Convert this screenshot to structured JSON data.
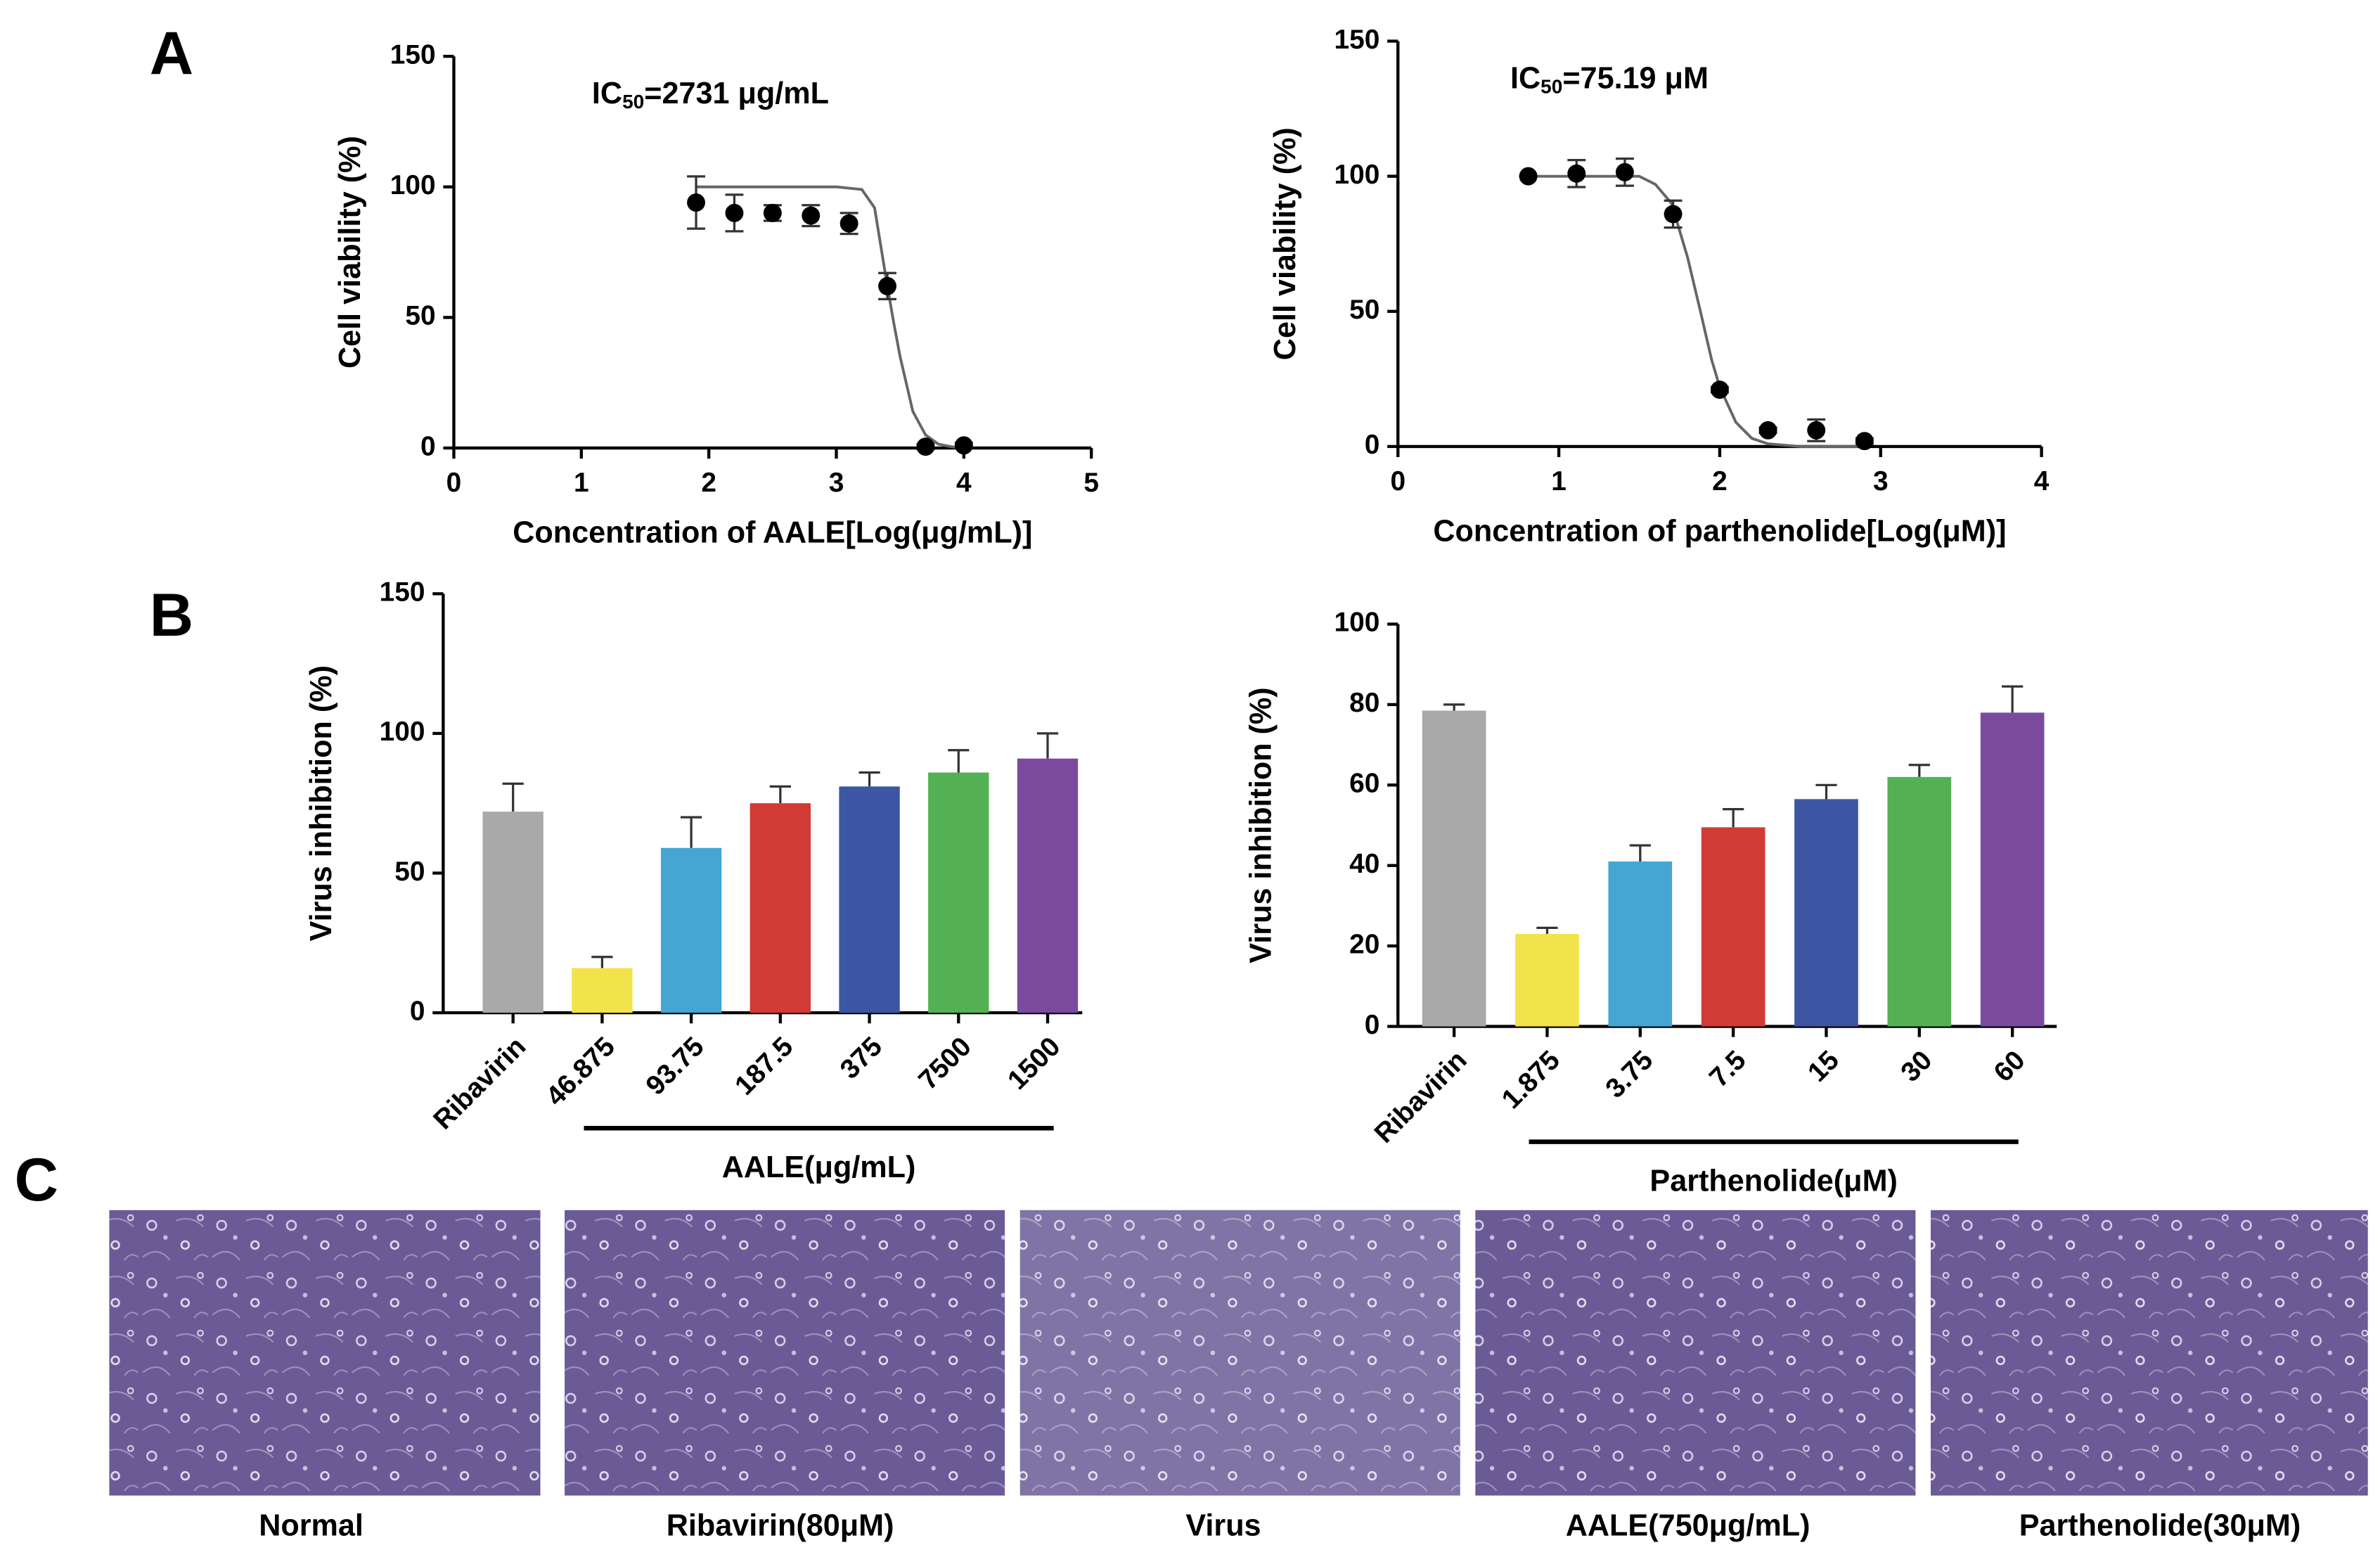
{
  "panel_labels": [
    "A",
    "B",
    "C"
  ],
  "chart_data": [
    {
      "type": "scatter",
      "xlabel": "Concentration of AALE[Log(μg/mL)]",
      "ylabel": "Cell viability (%)",
      "annotation": {
        "main": "IC",
        "sub": "50",
        "rest": "=2731 μg/mL"
      },
      "x": [
        1.9,
        2.2,
        2.5,
        2.8,
        3.1,
        3.4,
        3.7,
        4.0
      ],
      "values": [
        94,
        90,
        90,
        89,
        86,
        62,
        0.5,
        1
      ],
      "errors": [
        10,
        7,
        3,
        4,
        4,
        5,
        1,
        1
      ],
      "curve": {
        "x": [
          1.9,
          2.5,
          3.0,
          3.2,
          3.3,
          3.4,
          3.45,
          3.5,
          3.6,
          3.7,
          3.8,
          3.9,
          4.0
        ],
        "y": [
          100,
          100,
          100,
          99,
          92,
          62,
          48,
          35,
          14,
          5,
          1.5,
          0.5,
          0
        ]
      },
      "color": "#000000",
      "xlim": [
        0,
        5
      ],
      "xticks": [
        0,
        1,
        2,
        3,
        4,
        5
      ],
      "ylim": [
        0,
        150
      ],
      "yticks": [
        0,
        50,
        100,
        150
      ]
    },
    {
      "type": "scatter",
      "xlabel": "Concentration of parthenolide[Log(μM)]",
      "ylabel": "Cell viability (%)",
      "annotation": {
        "main": "IC",
        "sub": "50",
        "rest": "=75.19 μM"
      },
      "x": [
        0.81,
        1.11,
        1.41,
        1.71,
        2.0,
        2.3,
        2.6,
        2.9
      ],
      "values": [
        100,
        101,
        101.5,
        86,
        21,
        6,
        6,
        2
      ],
      "errors": [
        0,
        5,
        5,
        5,
        1,
        1,
        4,
        1
      ],
      "curve": {
        "x": [
          0.81,
          1.2,
          1.5,
          1.6,
          1.7,
          1.8,
          1.88,
          1.95,
          2.0,
          2.1,
          2.2,
          2.3,
          2.5,
          2.9
        ],
        "y": [
          100,
          100,
          100,
          97,
          90,
          70,
          50,
          32,
          22,
          9,
          3,
          1,
          0,
          0
        ]
      },
      "color": "#000000",
      "xlim": [
        0,
        4
      ],
      "xticks": [
        0,
        1,
        2,
        3,
        4
      ],
      "ylim": [
        0,
        150
      ],
      "yticks": [
        0,
        50,
        100,
        150
      ]
    },
    {
      "type": "bar",
      "ylabel": "Virus inhibition (%)",
      "group_label": "AALE(μg/mL)",
      "categories": [
        "Ribavirin",
        "46.875",
        "93.75",
        "187.5",
        "375",
        "7500",
        "1500"
      ],
      "values": [
        72,
        16,
        59,
        75,
        81,
        86,
        91
      ],
      "errors": [
        10,
        4,
        11,
        6,
        5,
        8,
        9
      ],
      "colors": [
        "#a9a9a9",
        "#f2e34c",
        "#45a5d3",
        "#d13a35",
        "#3c56a3",
        "#53b153",
        "#7b4a9e"
      ],
      "ylim": [
        0,
        150
      ],
      "yticks": [
        0,
        50,
        100,
        150
      ]
    },
    {
      "type": "bar",
      "ylabel": "Virus inhibition (%)",
      "group_label": "Parthenolide(μM)",
      "categories": [
        "Ribavirin",
        "1.875",
        "3.75",
        "7.5",
        "15",
        "30",
        "60"
      ],
      "values": [
        78.5,
        23,
        41,
        49.5,
        56.5,
        62,
        78
      ],
      "errors": [
        1.5,
        1.5,
        4,
        4.5,
        3.5,
        3,
        6.5
      ],
      "colors": [
        "#a9a9a9",
        "#f2e34c",
        "#45a5d3",
        "#d13a35",
        "#3c56a3",
        "#53b153",
        "#7b4a9e"
      ],
      "ylim": [
        0,
        100
      ],
      "yticks": [
        0,
        20,
        40,
        60,
        80,
        100
      ]
    }
  ],
  "images": [
    {
      "caption": "Normal"
    },
    {
      "caption": "Ribavirin(80μM)"
    },
    {
      "caption": "Virus"
    },
    {
      "caption": "AALE(750μg/mL)"
    },
    {
      "caption": "Parthenolide(30μM)"
    }
  ]
}
